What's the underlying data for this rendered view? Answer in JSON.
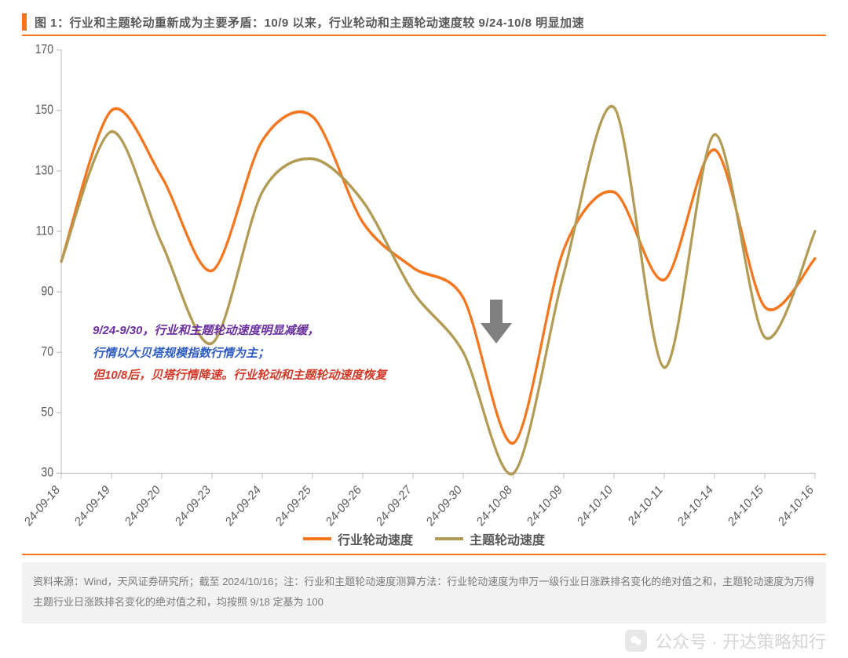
{
  "title": {
    "text": "图 1：行业和主题轮动重新成为主要矛盾：10/9 以来，行业轮动和主题轮动速度较 9/24-10/8 明显加速",
    "color": "#595959",
    "fontsize": 15,
    "tick_color": "#f4761f",
    "underline_color": "#f4761f"
  },
  "chart": {
    "type": "line",
    "background_color": "#ffffff",
    "ylim": [
      30,
      170
    ],
    "yticks": [
      30,
      50,
      70,
      90,
      110,
      130,
      150,
      170
    ],
    "y_axis_color": "#bfbfbf",
    "y_tick_label_color": "#595959",
    "y_tick_fontsize": 14,
    "x_categories": [
      "24-09-18",
      "24-09-19",
      "24-09-20",
      "24-09-23",
      "24-09-24",
      "24-09-25",
      "24-09-26",
      "24-09-27",
      "24-09-30",
      "24-10-08",
      "24-10-09",
      "24-10-10",
      "24-10-11",
      "24-10-14",
      "24-10-15",
      "24-10-16"
    ],
    "x_tick_label_color": "#595959",
    "x_tick_fontsize": 14,
    "x_tick_rotation_deg": -45,
    "line_width": 3.2,
    "curve_smoothness": 0.45,
    "series": [
      {
        "name": "行业轮动速度",
        "color": "#f4761f",
        "values": [
          100,
          150,
          128,
          97,
          140,
          148,
          113,
          98,
          88,
          40,
          104,
          123,
          94,
          137,
          85,
          101
        ]
      },
      {
        "name": "主题轮动速度",
        "color": "#b29b54",
        "values": [
          100,
          143,
          106,
          73,
          123,
          134,
          120,
          90,
          70,
          30,
          96,
          151,
          65,
          142,
          75,
          110
        ]
      }
    ],
    "tick_mark_color": "#bfbfbf",
    "bottom_rule_color": "#f4761f"
  },
  "legend": {
    "items": [
      {
        "label": "行业轮动速度",
        "color": "#f4761f"
      },
      {
        "label": "主题轮动速度",
        "color": "#b29b54"
      }
    ],
    "fontsize": 16,
    "text_color": "#595959",
    "swatch_thickness": 4
  },
  "annotation": {
    "line1_part_a": "9/24-9/30，行业和主题轮动速度明显减缓，",
    "line1_part_b": "行情以大贝塔规模指数行情为主；",
    "line2": "但10/8后，贝塔行情降速。行业轮动和主题轮动速度恢复",
    "color_purple": "#6a2fa0",
    "color_blue": "#2f5cc3",
    "color_red": "#d23a2a",
    "fontsize": 15,
    "italic": true
  },
  "arrow": {
    "fill": "#808080"
  },
  "footer": {
    "text": "资料来源：Wind，天风证券研究所；截至 2024/10/16；注：行业和主题轮动速度测算方法：行业轮动速度为申万一级行业日涨跌排名变化的绝对值之和，主题轮动速度为万得主题行业日涨跌排名变化的绝对值之和，均按照 9/18 定基为 100",
    "background": "#f2f2f2",
    "color": "#7a7a7a",
    "fontsize": 13
  },
  "watermark": {
    "prefix": "公众号 · ",
    "text": "开达策略知行",
    "fontsize": 22,
    "color": "#888888"
  }
}
